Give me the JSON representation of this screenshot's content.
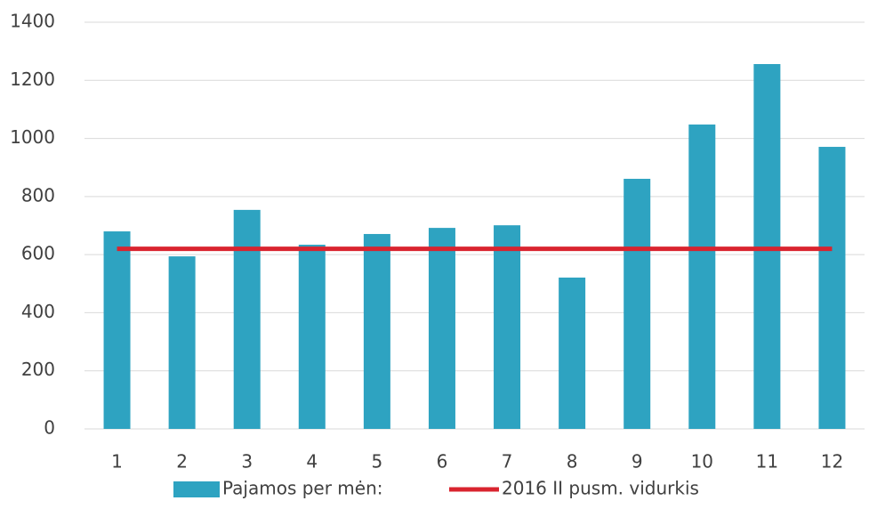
{
  "chart_data": {
    "type": "bar",
    "categories": [
      "1",
      "2",
      "3",
      "4",
      "5",
      "6",
      "7",
      "8",
      "9",
      "10",
      "11",
      "12"
    ],
    "series": [
      {
        "name": "Pajamos per mėn:",
        "type": "bar",
        "color": "#2ea3c1",
        "values": [
          680,
          594,
          754,
          634,
          671,
          692,
          701,
          521,
          861,
          1048,
          1256,
          971
        ]
      },
      {
        "name": "2016 II pusm. vidurkis",
        "type": "line",
        "color": "#d9242f",
        "values": [
          620,
          620,
          620,
          620,
          620,
          620,
          620,
          620,
          620,
          620,
          620,
          620
        ]
      }
    ],
    "ylim": [
      0,
      1400
    ],
    "yticks": [
      0,
      200,
      400,
      600,
      800,
      1000,
      1200,
      1400
    ],
    "grid": true,
    "legend": "bottom"
  }
}
